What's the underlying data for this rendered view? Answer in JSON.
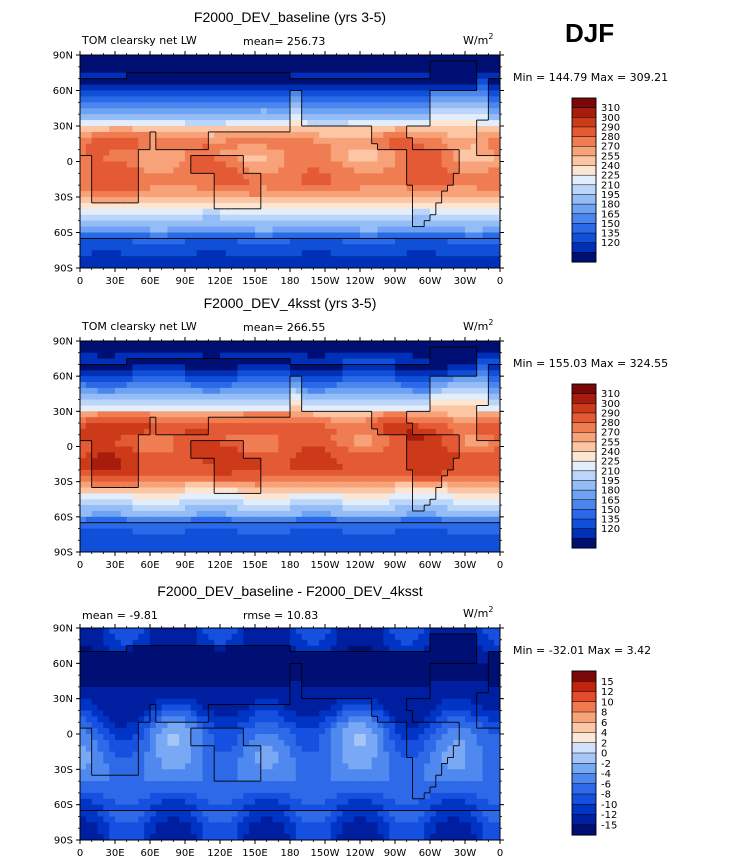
{
  "season": "DJF",
  "lat_ticks": [
    "90N",
    "60N",
    "30N",
    "0",
    "30S",
    "60S",
    "90S"
  ],
  "lon_ticks": [
    "0",
    "30E",
    "60E",
    "90E",
    "120E",
    "150E",
    "180",
    "150W",
    "120W",
    "90W",
    "60W",
    "30W",
    "0"
  ],
  "colors": {
    "abs": [
      "#000f73",
      "#0030b8",
      "#1050d8",
      "#2a6ae8",
      "#4a86ee",
      "#6ea2f2",
      "#94bcf6",
      "#bcd6fa",
      "#e2eefc",
      "#fce6d2",
      "#fcc6a4",
      "#f8a27a",
      "#f07c52",
      "#e45a34",
      "#cc3a1a",
      "#a81c0e",
      "#7a0808"
    ],
    "diff": [
      "#000f73",
      "#001ea0",
      "#0034c4",
      "#1650e0",
      "#2e6ae8",
      "#4f88ee",
      "#79a8f4",
      "#a6c6f8",
      "#d2e2fc",
      "#fce8d6",
      "#fcc8a4",
      "#f8a47a",
      "#f07a50",
      "#e24c2c",
      "#c0240e",
      "#7a0808"
    ]
  },
  "panels": [
    {
      "title": "F2000_DEV_baseline (yrs 3-5)",
      "left_label": "TOM clearsky net LW",
      "mean_label": "mean=",
      "mean_value": "256.73",
      "units_base": "W/m",
      "units_exp": "2",
      "minmax_text": "Min = 144.79 Max = 309.21",
      "colorbar_labels": [
        "310",
        "300",
        "290",
        "280",
        "270",
        "255",
        "240",
        "225",
        "210",
        "195",
        "180",
        "165",
        "150",
        "135",
        "120"
      ],
      "palette": "abs",
      "field": "base"
    },
    {
      "title": "F2000_DEV_4ksst (yrs 3-5)",
      "left_label": "TOM clearsky net LW",
      "mean_label": "mean=",
      "mean_value": "266.55",
      "units_base": "W/m",
      "units_exp": "2",
      "minmax_text": "Min = 155.03 Max = 324.55",
      "colorbar_labels": [
        "310",
        "300",
        "290",
        "280",
        "270",
        "255",
        "240",
        "225",
        "210",
        "195",
        "180",
        "165",
        "150",
        "135",
        "120"
      ],
      "palette": "abs",
      "field": "warm"
    },
    {
      "title": "F2000_DEV_baseline - F2000_DEV_4ksst",
      "left_label": "mean =",
      "mean_label": "",
      "mean_value": "-9.81",
      "rmse_label": "rmse =",
      "rmse_value": "10.83",
      "units_base": "W/m",
      "units_exp": "2",
      "minmax_text": "Min = -32.01 Max =    3.42",
      "colorbar_labels": [
        "15",
        "12",
        "10",
        "8",
        "6",
        "4",
        "2",
        "0",
        "-2",
        "-4",
        "-6",
        "-8",
        "-10",
        "-12",
        "-15"
      ],
      "palette": "diff",
      "field": "diff"
    }
  ]
}
